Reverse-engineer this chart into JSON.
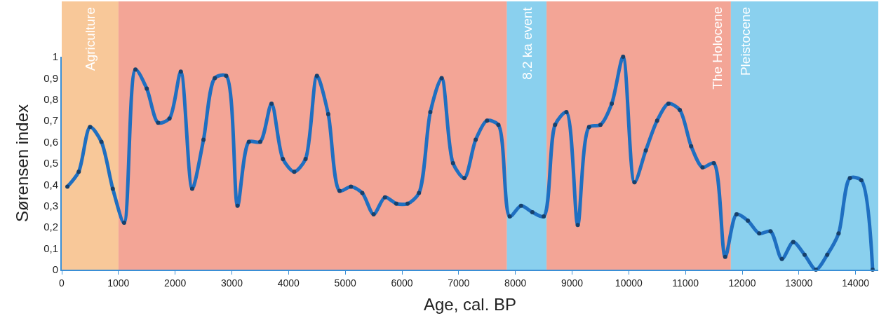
{
  "chart_data": {
    "type": "line",
    "xlabel": "Age, cal. BP",
    "ylabel": "Sørensen index",
    "x": [
      100,
      300,
      500,
      700,
      900,
      1100,
      1300,
      1500,
      1700,
      1900,
      2100,
      2300,
      2500,
      2700,
      2900,
      3100,
      3300,
      3500,
      3700,
      3900,
      4100,
      4300,
      4500,
      4700,
      4900,
      5100,
      5300,
      5500,
      5700,
      5900,
      6100,
      6300,
      6500,
      6700,
      6900,
      7100,
      7300,
      7500,
      7700,
      7900,
      8100,
      8300,
      8500,
      8700,
      8900,
      9100,
      9300,
      9500,
      9700,
      9900,
      10100,
      10300,
      10500,
      10700,
      10900,
      11100,
      11300,
      11500,
      11700,
      11900,
      12100,
      12300,
      12500,
      12700,
      12900,
      13100,
      13300,
      13500,
      13700,
      13900,
      14100,
      14300
    ],
    "series": [
      {
        "color": "#1f6fc1",
        "values": [
          0.39,
          0.46,
          0.67,
          0.6,
          0.38,
          0.22,
          0.94,
          0.85,
          0.69,
          0.71,
          0.93,
          0.38,
          0.61,
          0.9,
          0.91,
          0.3,
          0.6,
          0.6,
          0.78,
          0.52,
          0.46,
          0.52,
          0.91,
          0.73,
          0.37,
          0.39,
          0.36,
          0.26,
          0.34,
          0.31,
          0.31,
          0.36,
          0.74,
          0.9,
          0.5,
          0.43,
          0.61,
          0.7,
          0.68,
          0.25,
          0.3,
          0.27,
          0.25,
          0.68,
          0.74,
          0.21,
          0.67,
          0.68,
          0.78,
          1.0,
          0.41,
          0.56,
          0.7,
          0.78,
          0.75,
          0.58,
          0.48,
          0.5,
          0.06,
          0.26,
          0.23,
          0.17,
          0.18,
          0.05,
          0.13,
          0.07,
          0.0,
          0.07,
          0.17,
          0.43,
          0.42,
          0.0
        ]
      }
    ],
    "xlim": [
      0,
      14400
    ],
    "ylim": [
      0,
      1
    ],
    "xticks": [
      0,
      1000,
      2000,
      3000,
      4000,
      5000,
      6000,
      7000,
      8000,
      9000,
      10000,
      11000,
      12000,
      13000,
      14000
    ],
    "yticks": [
      0,
      {
        "value": 0.1,
        "label": "0,1"
      },
      {
        "value": 0.2,
        "label": "0,2"
      },
      {
        "value": 0.3,
        "label": "0,3"
      },
      {
        "value": 0.4,
        "label": "0,4"
      },
      {
        "value": 0.5,
        "label": "0,5"
      },
      {
        "value": 0.6,
        "label": "0,6"
      },
      {
        "value": 0.7,
        "label": "0,7"
      },
      {
        "value": 0.8,
        "label": "0,8"
      },
      {
        "value": 0.9,
        "label": "0,9"
      },
      1
    ],
    "bands": [
      {
        "axis": "x",
        "from": 0,
        "to": 1000,
        "label": "Agriculture",
        "color": "#f39a45"
      },
      {
        "axis": "x",
        "from": 1000,
        "to": 7850,
        "color": "#e95b40"
      },
      {
        "axis": "x",
        "from": 7850,
        "to": 8550,
        "label": "8.2 ka event",
        "color": "#2aa9e0"
      },
      {
        "axis": "x",
        "from": 8550,
        "to": 11800,
        "label": "The Holocene",
        "color": "#e95b40"
      },
      {
        "axis": "x",
        "from": 11800,
        "to": 14400,
        "label": "Pleistocene",
        "color": "#2aa9e0"
      }
    ],
    "marker": "circle",
    "grid": false
  }
}
